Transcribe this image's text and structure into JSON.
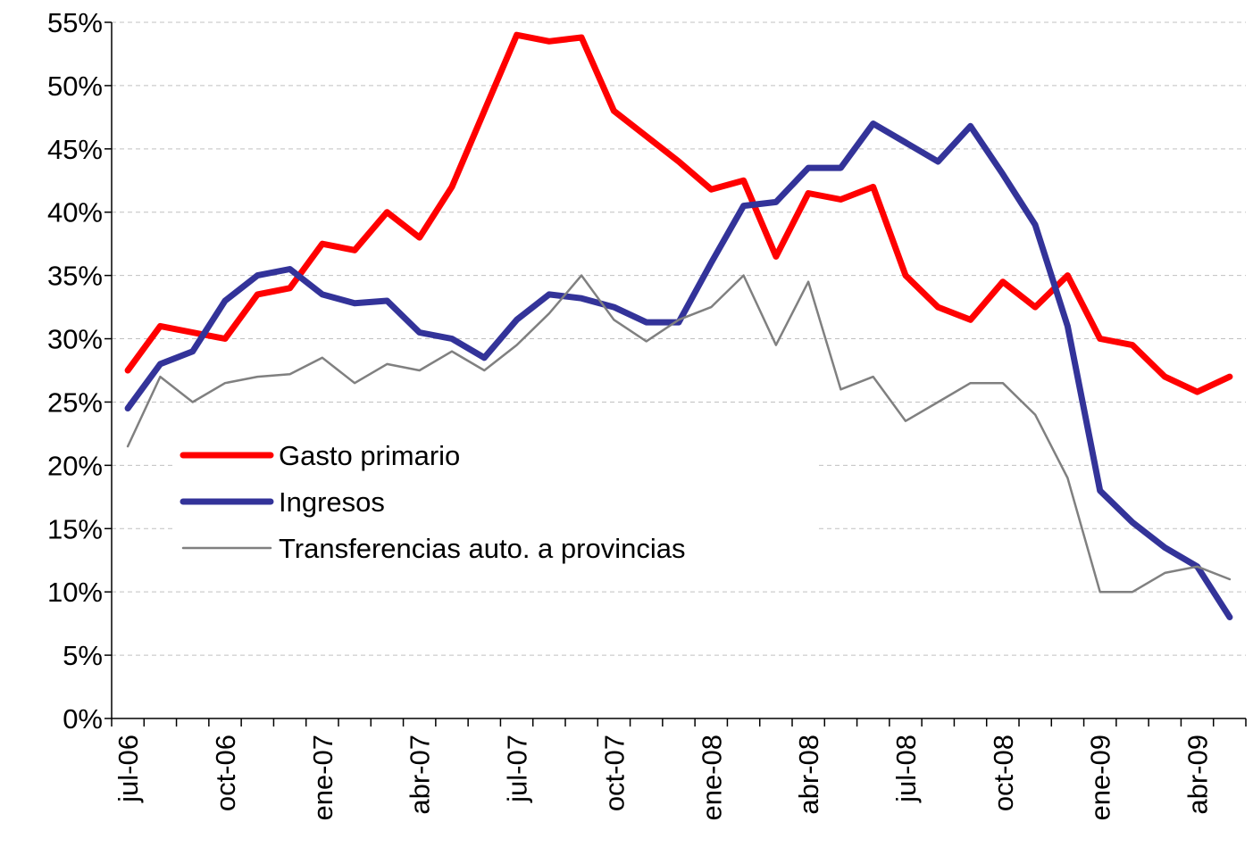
{
  "chart_data": {
    "type": "line",
    "categories": [
      "jul-06",
      null,
      null,
      "oct-06",
      null,
      null,
      "ene-07",
      null,
      null,
      "abr-07",
      null,
      null,
      "jul-07",
      null,
      null,
      "oct-07",
      null,
      null,
      "ene-08",
      null,
      null,
      "abr-08",
      null,
      null,
      "jul-08",
      null,
      null,
      "oct-08",
      null,
      null,
      "ene-09",
      null,
      null,
      "abr-09",
      null
    ],
    "series": [
      {
        "name": "Gasto primario",
        "color": "#ff0000",
        "width": 7,
        "values": [
          27.5,
          31,
          30.5,
          30,
          33.5,
          34,
          37.5,
          37,
          40,
          38,
          42,
          48,
          54,
          53.5,
          53.8,
          48,
          46,
          44,
          41.8,
          42.5,
          36.5,
          41.5,
          41,
          42,
          35,
          32.5,
          31.5,
          34.5,
          32.5,
          35,
          30,
          29.5,
          27,
          25.8,
          27
        ]
      },
      {
        "name": "Ingresos",
        "color": "#333399",
        "width": 7,
        "values": [
          24.5,
          28,
          29,
          33,
          35,
          35.5,
          33.5,
          32.8,
          33,
          30.5,
          30,
          28.5,
          31.5,
          33.5,
          33.2,
          32.5,
          31.3,
          31.3,
          36,
          40.5,
          40.8,
          43.5,
          43.5,
          47,
          45.5,
          44,
          46.8,
          43,
          39,
          31,
          18,
          15.5,
          13.5,
          12,
          8
        ]
      },
      {
        "name": "Transferencias auto. a provincias",
        "color": "#808080",
        "width": 2.5,
        "values": [
          21.5,
          27,
          25,
          26.5,
          27,
          27.2,
          28.5,
          26.5,
          28,
          27.5,
          29,
          27.5,
          29.5,
          32,
          35,
          31.5,
          29.8,
          31.5,
          32.5,
          35,
          29.5,
          34.5,
          26,
          27,
          23.5,
          25,
          26.5,
          26.5,
          24,
          19,
          10,
          10,
          11.5,
          12,
          11
        ]
      }
    ],
    "ylim": [
      0,
      55
    ],
    "yticks": [
      {
        "value": 0,
        "label": "0%"
      },
      {
        "value": 5,
        "label": "5%"
      },
      {
        "value": 10,
        "label": "10%"
      },
      {
        "value": 15,
        "label": "15%"
      },
      {
        "value": 20,
        "label": "20%"
      },
      {
        "value": 25,
        "label": "25%"
      },
      {
        "value": 30,
        "label": "30%"
      },
      {
        "value": 35,
        "label": "35%"
      },
      {
        "value": 40,
        "label": "40%"
      },
      {
        "value": 45,
        "label": "45%"
      },
      {
        "value": 50,
        "label": "50%"
      },
      {
        "value": 55,
        "label": "55%"
      }
    ],
    "grid": true,
    "legend": "left"
  }
}
